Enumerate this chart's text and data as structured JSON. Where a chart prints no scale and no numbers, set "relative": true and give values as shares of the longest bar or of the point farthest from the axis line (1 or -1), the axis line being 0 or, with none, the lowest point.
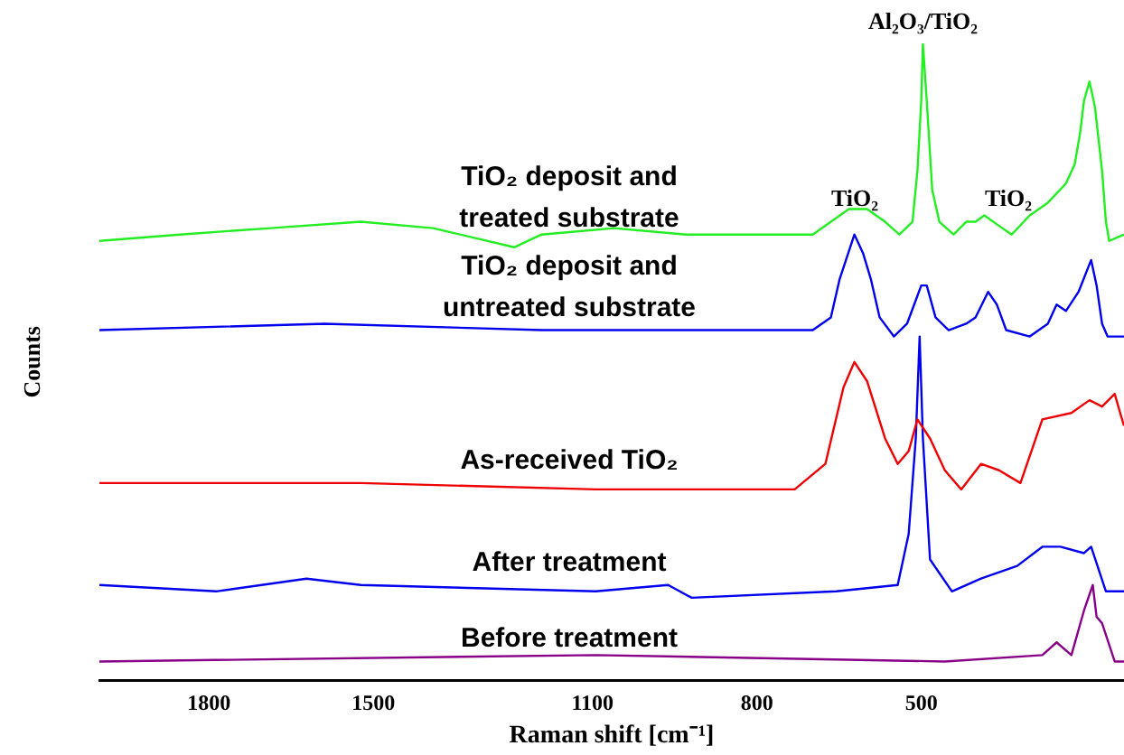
{
  "chart_data": {
    "type": "line",
    "xlabel": "Raman shift [cm⁻¹]",
    "ylabel": "Counts",
    "relative": true,
    "xlim": [
      2000,
      130
    ],
    "xticks": [
      1800,
      1500,
      1100,
      800,
      500
    ],
    "grid": false,
    "legend": false,
    "marker": "none",
    "line_style": "solid",
    "annotations": [
      "TiO₂",
      {
        "text": "Al₂O₃/TiO₂",
        "x": 497,
        "y": 1
      },
      "TiO₂"
    ],
    "series": [
      {
        "name": "TiO₂ deposit and treated substrate",
        "color": "#22ee22",
        "x": [
          2000,
          1853,
          1688,
          1523,
          1391,
          1243,
          1193,
          1061,
          929,
          797,
          698,
          632,
          599,
          566,
          540,
          516,
          507,
          500,
          497,
          490,
          480,
          467,
          441,
          418,
          401,
          385,
          352,
          335,
          302,
          269,
          236,
          220,
          210,
          203,
          193,
          183,
          170,
          163,
          157,
          130
        ],
        "values": [
          0.69,
          0.7,
          0.71,
          0.72,
          0.71,
          0.68,
          0.7,
          0.71,
          0.7,
          0.7,
          0.7,
          0.74,
          0.74,
          0.72,
          0.7,
          0.72,
          0.8,
          0.91,
          1,
          0.91,
          0.77,
          0.72,
          0.7,
          0.72,
          0.72,
          0.73,
          0.71,
          0.7,
          0.73,
          0.75,
          0.78,
          0.81,
          0.86,
          0.91,
          0.94,
          0.9,
          0.8,
          0.72,
          0.69,
          0.7
        ]
      },
      {
        "name": "TiO₂ deposit and untreated substrate",
        "color": "#0000ee",
        "x": [
          2000,
          1589,
          1193,
          698,
          665,
          649,
          622,
          606,
          592,
          576,
          550,
          526,
          500,
          490,
          474,
          450,
          418,
          401,
          378,
          362,
          345,
          302,
          269,
          253,
          236,
          213,
          190,
          180,
          170,
          160,
          130
        ],
        "values": [
          0.55,
          0.56,
          0.55,
          0.55,
          0.57,
          0.63,
          0.7,
          0.67,
          0.63,
          0.57,
          0.54,
          0.56,
          0.62,
          0.62,
          0.57,
          0.55,
          0.56,
          0.57,
          0.61,
          0.59,
          0.55,
          0.54,
          0.56,
          0.59,
          0.58,
          0.61,
          0.66,
          0.62,
          0.56,
          0.54,
          0.54
        ]
      },
      {
        "name": "As-received TiO₂",
        "color": "#ee0000",
        "x": [
          2000,
          1523,
          1094,
          731,
          675,
          642,
          622,
          599,
          566,
          543,
          523,
          507,
          484,
          457,
          427,
          391,
          358,
          319,
          279,
          226,
          193,
          170,
          147,
          137,
          130
        ],
        "values": [
          0.31,
          0.31,
          0.3,
          0.3,
          0.34,
          0.46,
          0.5,
          0.47,
          0.38,
          0.34,
          0.36,
          0.41,
          0.38,
          0.33,
          0.3,
          0.34,
          0.33,
          0.31,
          0.41,
          0.42,
          0.44,
          0.43,
          0.45,
          0.42,
          0.4
        ]
      },
      {
        "name": "After treatment",
        "color": "#0000ee",
        "x": [
          2000,
          1787,
          1622,
          1523,
          1094,
          962,
          919,
          655,
          543,
          523,
          510,
          503,
          497,
          484,
          444,
          391,
          325,
          279,
          246,
          203,
          190,
          163,
          130
        ],
        "values": [
          0.15,
          0.14,
          0.16,
          0.15,
          0.14,
          0.15,
          0.13,
          0.14,
          0.15,
          0.23,
          0.38,
          0.54,
          0.38,
          0.19,
          0.14,
          0.16,
          0.18,
          0.21,
          0.21,
          0.2,
          0.21,
          0.14,
          0.14
        ]
      },
      {
        "name": "Before treatment",
        "color": "#880088",
        "x": [
          2000,
          1094,
          457,
          279,
          253,
          226,
          203,
          187,
          180,
          170,
          147,
          130
        ],
        "values": [
          0.03,
          0.04,
          0.03,
          0.04,
          0.06,
          0.04,
          0.11,
          0.15,
          0.1,
          0.09,
          0.03,
          0.03
        ]
      }
    ]
  }
}
